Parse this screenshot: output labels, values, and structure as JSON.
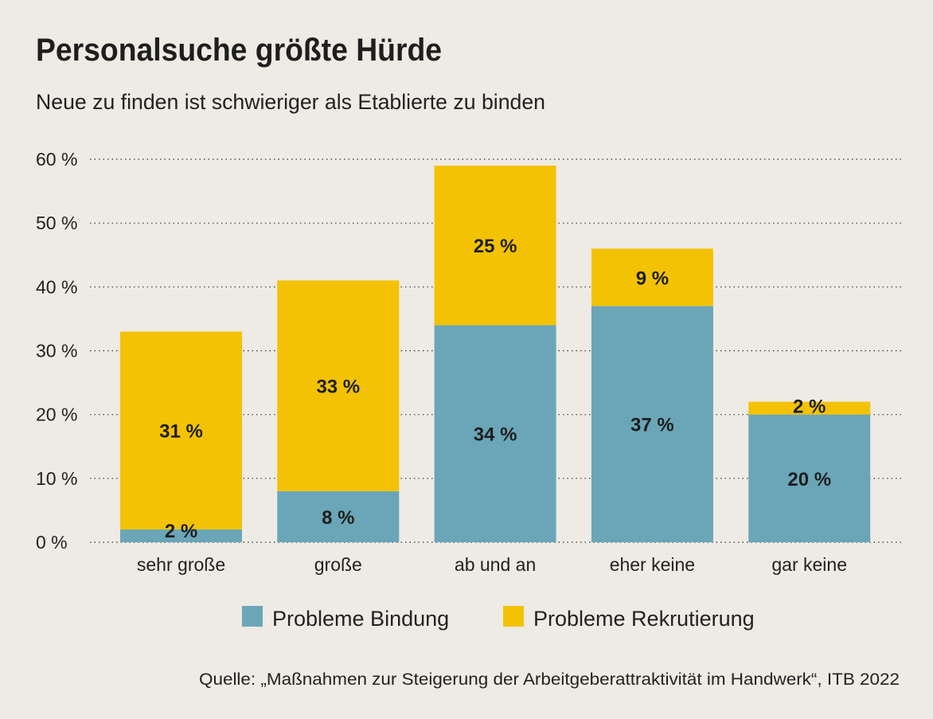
{
  "chart_data": {
    "type": "bar",
    "stacked": true,
    "title": "Personalsuche größte Hürde",
    "subtitle": "Neue zu finden ist schwieriger als Etablierte zu binden",
    "categories": [
      "sehr große",
      "große",
      "ab und an",
      "eher keine",
      "gar keine"
    ],
    "series": [
      {
        "name": "Probleme Bindung",
        "color": "#6aa6b8",
        "values": [
          2,
          8,
          34,
          37,
          20
        ]
      },
      {
        "name": "Probleme Rekrutierung",
        "color": "#f3c204",
        "values": [
          31,
          33,
          25,
          9,
          2
        ]
      }
    ],
    "value_suffix": " %",
    "ylim": [
      0,
      60
    ],
    "yticks": [
      0,
      10,
      20,
      30,
      40,
      50,
      60
    ],
    "ytick_labels": [
      "0 %",
      "10 %",
      "20 %",
      "30 %",
      "40 %",
      "50 %",
      "60 %"
    ],
    "grid": "horizontal dotted",
    "legend": "bottom",
    "source": "Quelle: „Maßnahmen zur Steigerung der Arbeitgeberattraktivität im Handwerk“, ITB 2022"
  }
}
